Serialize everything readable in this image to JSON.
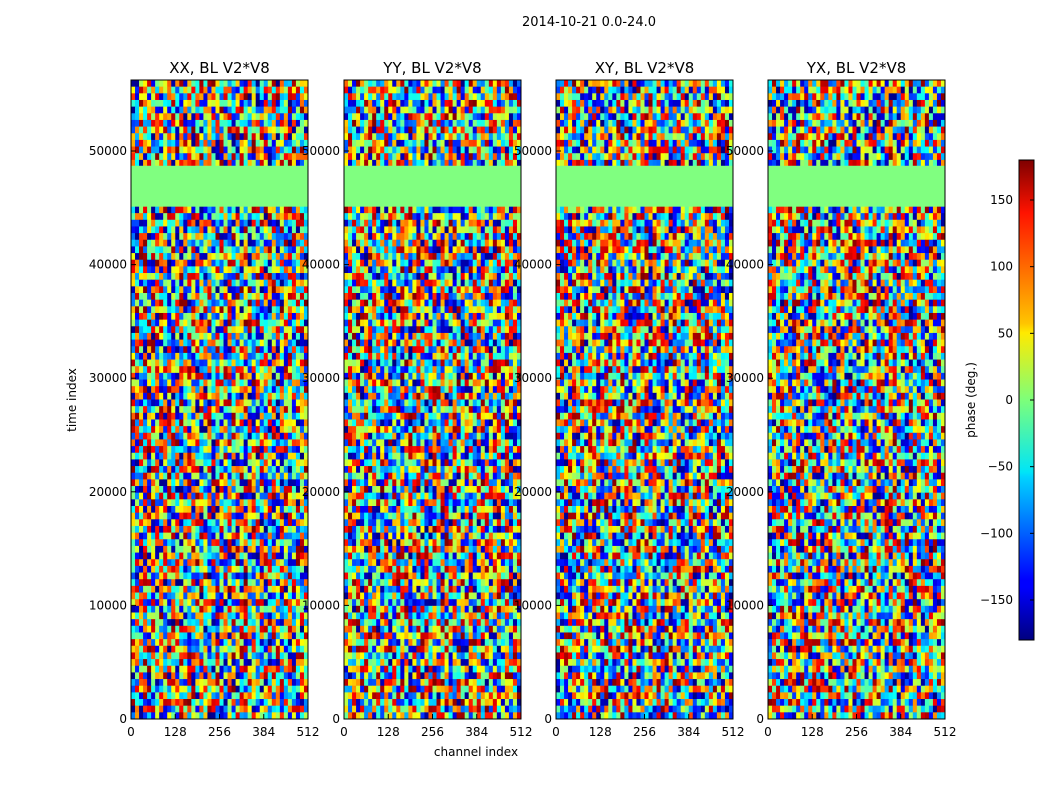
{
  "suptitle": "2014-10-21 0.0-24.0",
  "colors": {
    "background": "#ffffff",
    "axis": "#000000",
    "flagged": "#80ff80"
  },
  "chart_data": {
    "type": "heatmap",
    "colormap": "jet",
    "panels": [
      {
        "title": "XX, BL V2*V8",
        "pol": "XX"
      },
      {
        "title": "YY, BL V2*V8",
        "pol": "YY"
      },
      {
        "title": "XY, BL V2*V8",
        "pol": "XY"
      },
      {
        "title": "YX, BL V2*V8",
        "pol": "YX"
      }
    ],
    "xlabel": "channel index",
    "ylabel": "time index",
    "xlim": [
      0,
      512
    ],
    "ylim": [
      0,
      56250
    ],
    "xticks": [
      0,
      128,
      256,
      384,
      512
    ],
    "xtick_labels": [
      "0",
      "128",
      "256",
      "384",
      "512"
    ],
    "yticks": [
      0,
      10000,
      20000,
      30000,
      40000,
      50000
    ],
    "ytick_labels": [
      "0",
      "10000",
      "20000",
      "30000",
      "40000",
      "50000"
    ],
    "flagged_band": [
      45100,
      48700
    ],
    "colorbar": {
      "label": "phase (deg.)",
      "range": [
        -180,
        180
      ],
      "ticks": [
        -150,
        -100,
        -50,
        0,
        50,
        100,
        150
      ],
      "tick_labels": [
        "−150",
        "−100",
        "−50",
        "0",
        "50",
        "100",
        "150"
      ]
    }
  }
}
